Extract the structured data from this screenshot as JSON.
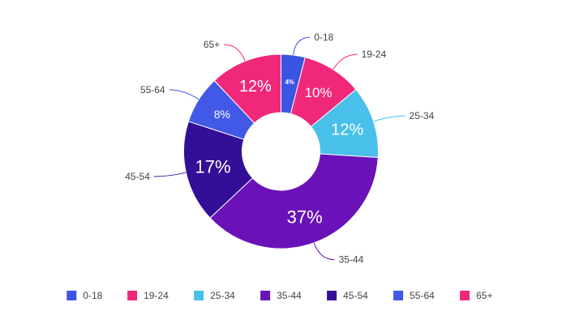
{
  "chart_data": {
    "type": "pie",
    "donut": true,
    "title": "",
    "categories": [
      "0-18",
      "19-24",
      "25-34",
      "35-44",
      "45-54",
      "55-64",
      "65+"
    ],
    "values": [
      4,
      10,
      12,
      37,
      17,
      8,
      12
    ],
    "value_labels": [
      "4%",
      "10%",
      "12%",
      "37%",
      "17%",
      "8%",
      "12%"
    ],
    "colors": [
      "#3b54e2",
      "#f0287a",
      "#48c0ea",
      "#6a12b8",
      "#330e96",
      "#4159e6",
      "#f0287a"
    ],
    "legend": {
      "position": "bottom",
      "entries": [
        "0-18",
        "19-24",
        "25-34",
        "35-44",
        "45-54",
        "55-64",
        "65+"
      ]
    }
  }
}
